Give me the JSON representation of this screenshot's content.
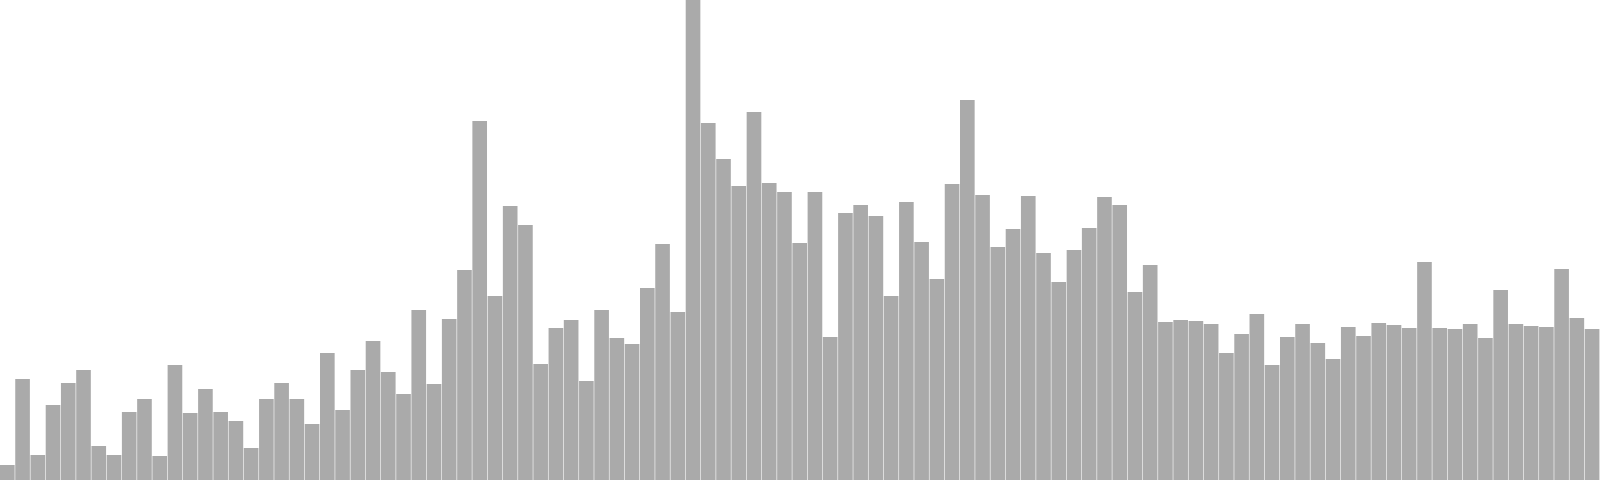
{
  "chart_data": {
    "type": "bar",
    "title": "",
    "xlabel": "",
    "ylabel": "",
    "ylim": [
      0,
      480
    ],
    "grid": false,
    "legend": "none",
    "bar_color": "#aaaaaa",
    "values": [
      15,
      101,
      25,
      75,
      97,
      110,
      34,
      25,
      68,
      81,
      24,
      115,
      67,
      91,
      68,
      59,
      32,
      81,
      97,
      81,
      56,
      127,
      70,
      110,
      139,
      108,
      86,
      170,
      96,
      161,
      210,
      359,
      184,
      274,
      255,
      116,
      152,
      160,
      99,
      170,
      142,
      136,
      192,
      236,
      168,
      480,
      357,
      321,
      294,
      368,
      297,
      288,
      237,
      288,
      143,
      267,
      275,
      264,
      184,
      278,
      238,
      201,
      296,
      380,
      285,
      233,
      251,
      284,
      227,
      198,
      230,
      252,
      283,
      275,
      188,
      215,
      158,
      160,
      159,
      156,
      127,
      146,
      166,
      115,
      143,
      156,
      137,
      121,
      153,
      144,
      157,
      155,
      152,
      218,
      152,
      151,
      156,
      142,
      190,
      156,
      154,
      153,
      211,
      162,
      151
    ]
  }
}
